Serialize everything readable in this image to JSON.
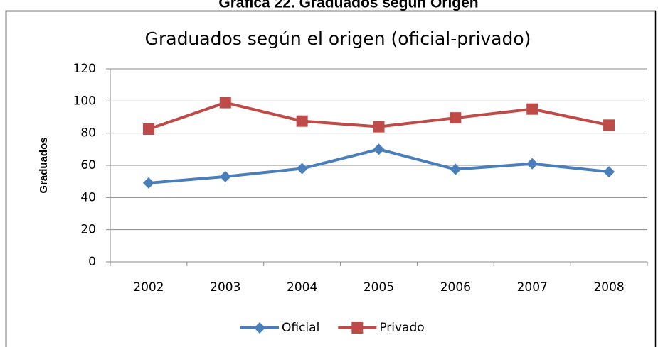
{
  "caption": "Gráfica 22. Graduados según Origen",
  "chart_data": {
    "type": "line",
    "title": "Graduados según el origen (oficial-privado)",
    "y_label": "Graduados",
    "categories": [
      "2002",
      "2003",
      "2004",
      "2005",
      "2006",
      "2007",
      "2008"
    ],
    "series": [
      {
        "name": "Oficial",
        "color": "#4a7ebb",
        "marker": "diamond",
        "values": [
          49,
          53,
          58,
          70,
          57.5,
          61,
          56
        ]
      },
      {
        "name": "Privado",
        "color": "#be4b48",
        "marker": "square",
        "values": [
          82.5,
          99,
          87.5,
          84,
          89.5,
          95,
          85
        ]
      }
    ],
    "ylim": [
      0,
      120
    ],
    "yticks": [
      0,
      20,
      40,
      60,
      80,
      100,
      120
    ],
    "grid": true,
    "legend": "bottom"
  }
}
